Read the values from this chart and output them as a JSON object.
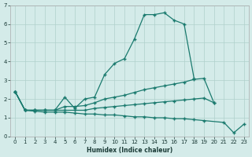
{
  "xlabel": "Humidex (Indice chaleur)",
  "x": [
    0,
    1,
    2,
    3,
    4,
    5,
    6,
    7,
    8,
    9,
    10,
    11,
    12,
    13,
    14,
    15,
    16,
    17,
    18,
    19,
    20,
    21,
    22,
    23
  ],
  "line1": [
    2.4,
    1.4,
    1.4,
    1.4,
    1.4,
    2.1,
    1.5,
    2.0,
    2.1,
    3.3,
    3.9,
    4.15,
    5.2,
    6.5,
    6.5,
    6.6,
    6.2,
    6.0,
    3.1,
    null,
    null,
    null,
    null,
    null
  ],
  "line2": [
    2.4,
    1.4,
    1.4,
    1.4,
    1.4,
    1.6,
    1.6,
    1.65,
    1.8,
    2.0,
    2.1,
    2.2,
    2.35,
    2.5,
    2.6,
    2.7,
    2.8,
    2.9,
    3.05,
    3.1,
    1.8,
    null,
    null,
    null
  ],
  "line3": [
    2.4,
    1.4,
    1.4,
    1.4,
    1.4,
    1.4,
    1.4,
    1.4,
    1.5,
    1.55,
    1.6,
    1.65,
    1.7,
    1.75,
    1.8,
    1.85,
    1.9,
    1.95,
    2.0,
    2.05,
    1.8,
    null,
    null,
    null
  ],
  "line4": [
    2.4,
    1.4,
    1.35,
    1.3,
    1.3,
    1.3,
    1.25,
    1.2,
    1.2,
    1.15,
    1.15,
    1.1,
    1.05,
    1.05,
    1.0,
    1.0,
    0.95,
    0.95,
    0.9,
    0.85,
    null,
    0.75,
    0.2,
    0.65
  ],
  "bg_color": "#d4ebe9",
  "grid_color": "#b0d0cc",
  "line_color": "#1a7a6e",
  "ylim": [
    0,
    7
  ],
  "xlim": [
    -0.5,
    23.5
  ],
  "yticks": [
    0,
    1,
    2,
    3,
    4,
    5,
    6,
    7
  ]
}
